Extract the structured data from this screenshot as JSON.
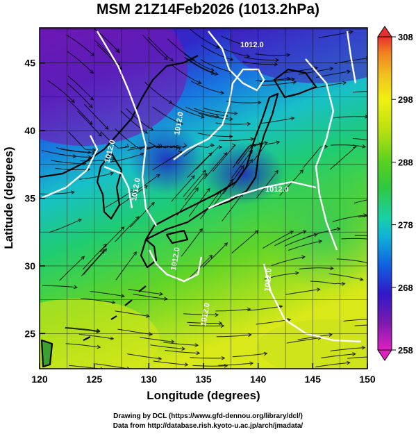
{
  "title": "MSM 21Z14Feb2026 (1013.2hPa)",
  "chart_data": {
    "type": "heatmap",
    "title": "MSM 21Z14Feb2026 (1013.2hPa)",
    "xlabel": "Longitude (degrees)",
    "ylabel": "Latitude  (degrees)",
    "xlim": [
      120,
      150
    ],
    "ylim": [
      22.4,
      47.6
    ],
    "x_ticks": [
      120,
      125,
      130,
      135,
      140,
      145,
      150
    ],
    "y_ticks": [
      25,
      30,
      35,
      40,
      45
    ],
    "grid": true,
    "colorbar": {
      "range": [
        258,
        308
      ],
      "ticks": [
        258,
        268,
        278,
        288,
        298,
        308
      ],
      "colors": [
        "#e020c0",
        "#7a1ab0",
        "#3018c8",
        "#1060e0",
        "#10b0d8",
        "#18d0a8",
        "#30c840",
        "#58d020",
        "#b8e010",
        "#f0f010",
        "#f0c020",
        "#f08020",
        "#e83030"
      ]
    },
    "contour_labels": [
      "1012.0",
      "1012.0",
      "1012.0",
      "1012.0",
      "1012.0",
      "1012.0",
      "1012.0",
      "1012.0"
    ]
  },
  "credits": [
    "Drawing by DCL (https://www.gfd-dennou.org/library/dcl/)",
    "Data from http://database.rish.kyoto-u.ac.jp/arch/jmadata/"
  ]
}
